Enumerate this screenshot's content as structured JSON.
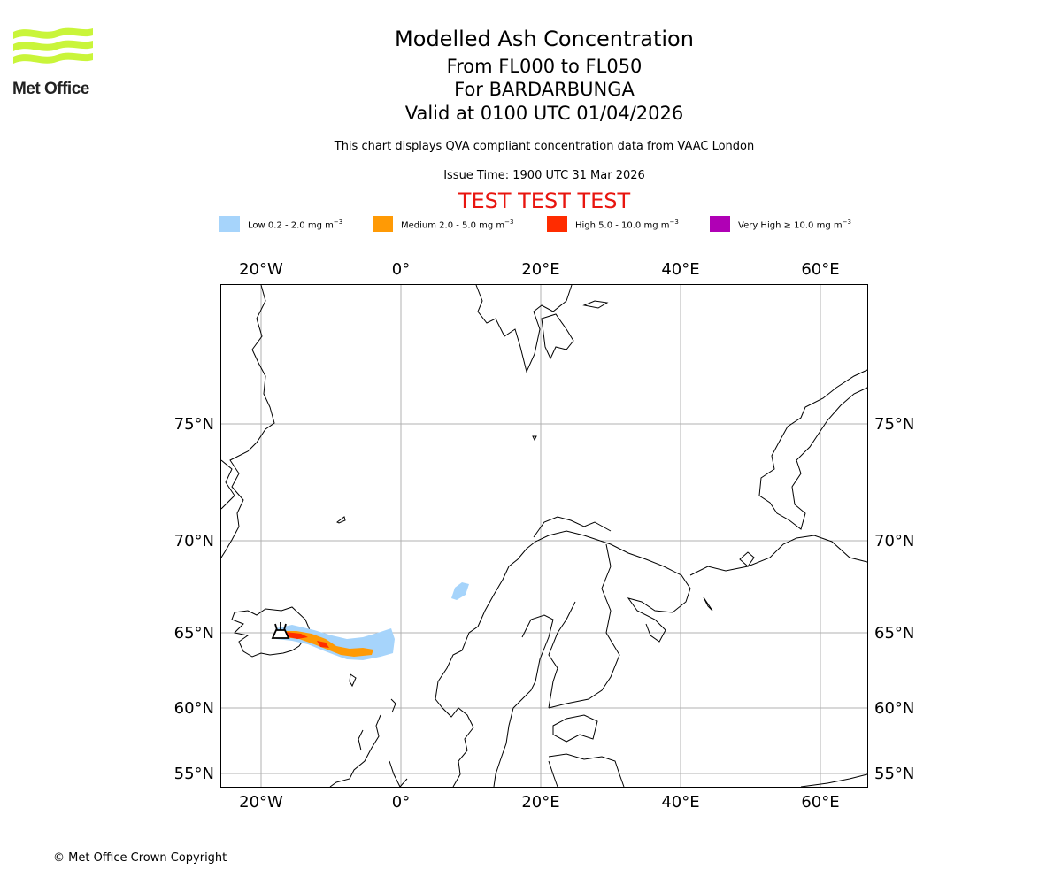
{
  "header": {
    "logo_text": "Met Office",
    "title": "Modelled Ash Concentration",
    "flight_levels": "From FL000 to FL050",
    "volcano": "For BARDARBUNGA",
    "valid_time": "Valid at 0100 UTC 01/04/2026",
    "compliance_note": "This chart displays QVA compliant concentration data from VAAC London",
    "issue_time": "Issue Time: 1900 UTC 31 Mar 2026",
    "test_banner": "TEST TEST TEST"
  },
  "legend": [
    {
      "label": "Low 0.2 - 2.0 mg m",
      "unit_sup": "−3",
      "color": "#a6d4fb"
    },
    {
      "label": "Medium 2.0 - 5.0 mg m",
      "unit_sup": "−3",
      "color": "#ff9a05"
    },
    {
      "label": "High 5.0 - 10.0 mg m",
      "unit_sup": "−3",
      "color": "#ff2c00"
    },
    {
      "label": "Very High  ≥  10.0 mg m",
      "unit_sup": "−3",
      "color": "#b000b5"
    }
  ],
  "map": {
    "top_longitude_labels": [
      "20°W",
      "0°",
      "20°E",
      "40°E",
      "60°E"
    ],
    "bottom_longitude_labels": [
      "20°W",
      "0°",
      "20°E",
      "40°E",
      "60°E"
    ],
    "left_latitude_labels": [
      "75°N",
      "70°N",
      "65°N",
      "60°N",
      "55°N"
    ],
    "right_latitude_labels": [
      "75°N",
      "70°N",
      "65°N",
      "60°N",
      "55°N"
    ],
    "volcano_marker": "volcano-icon"
  },
  "footer": {
    "copyright": "© Met Office Crown Copyright"
  }
}
